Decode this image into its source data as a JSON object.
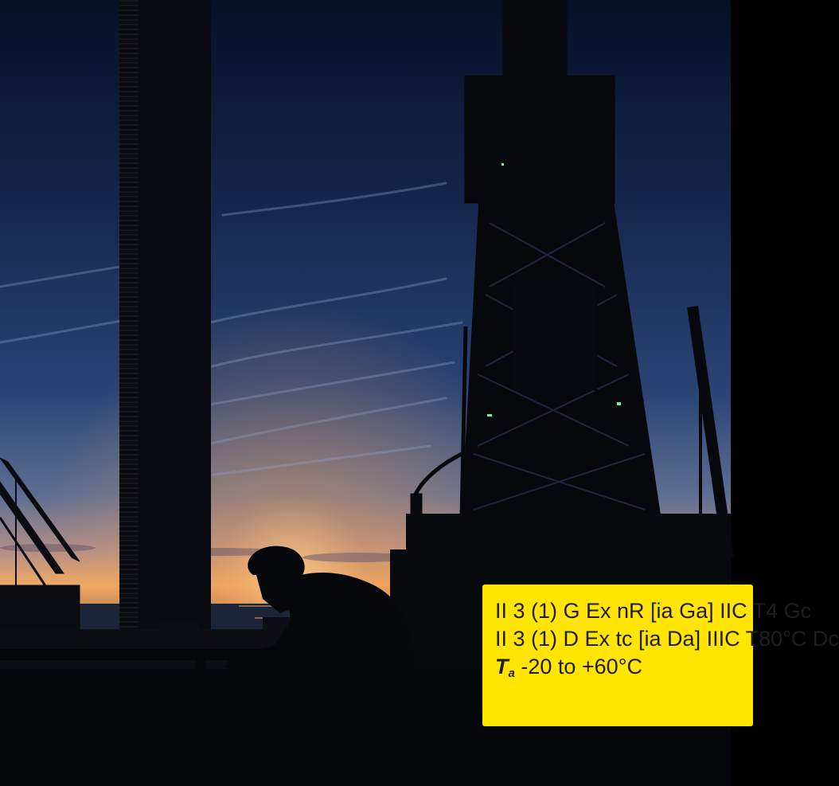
{
  "colors": {
    "sky_top": "#0a1630",
    "sky_mid": "#253a68",
    "horizon_glow": "#f0a860",
    "sea": "#1b2438",
    "silhouette": "#07080c",
    "label_bg": "#ffe500",
    "label_text": "#1e1e1e"
  },
  "scene": {
    "subject": "silhouette-worker-offshore-drilling-rig-sunset"
  },
  "label": {
    "line1": "II 3 (1) G Ex nR [ia Ga] IIC T4 Gc",
    "line2": "II 3 (1) D Ex tc [ia Da] IIIC T80°C Dc",
    "ta_symbol": "T",
    "ta_subscript": "a",
    "ta_range": " -20 to +60°C"
  }
}
